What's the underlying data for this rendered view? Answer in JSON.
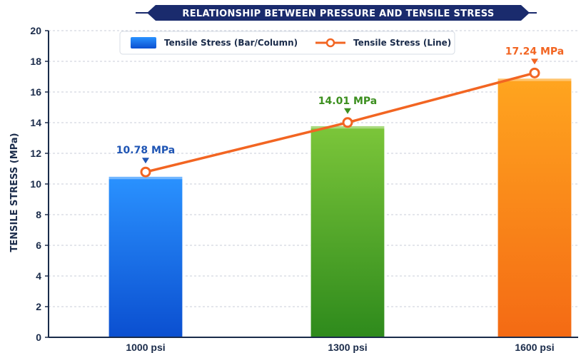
{
  "chart_data": {
    "type": "bar",
    "title": "RELATIONSHIP BETWEEN PRESSURE AND TENSILE STRESS",
    "xlabel": "",
    "ylabel": "TENSILE STRESS (MPa)",
    "ylim": [
      0,
      20
    ],
    "yticks": [
      0,
      2,
      4,
      6,
      8,
      10,
      12,
      14,
      16,
      18,
      20
    ],
    "grid": true,
    "legend_position": "top",
    "categories": [
      "1000 psi",
      "1300 psi",
      "1600 psi"
    ],
    "series": [
      {
        "name": "Tensile Stress (Bar/Column)",
        "type": "bar",
        "values": [
          10.5,
          13.8,
          16.9
        ],
        "colors": [
          "#1a6fe8",
          "#4aa82a",
          "#f47a1a"
        ]
      },
      {
        "name": "Tensile Stress (Line)",
        "type": "line",
        "values": [
          10.78,
          14.01,
          17.24
        ],
        "color": "#f26522"
      }
    ],
    "data_labels": [
      {
        "text": "10.78 MPa",
        "color": "#1f55b4"
      },
      {
        "text": "14.01 MPa",
        "color": "#3c8f1f"
      },
      {
        "text": "17.24 MPa",
        "color": "#f26522"
      }
    ]
  }
}
